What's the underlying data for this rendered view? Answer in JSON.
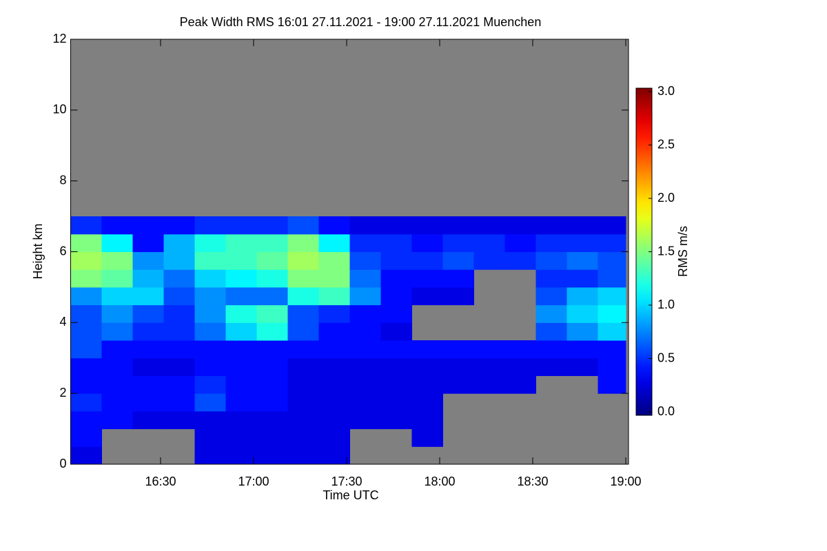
{
  "chart_data": {
    "type": "heatmap",
    "title": "Peak Width RMS   16:01 27.11.2021 - 19:00 27.11.2021 Muenchen",
    "xlabel": "Time UTC",
    "ylabel": "Height km",
    "colorbar_label": "RMS m/s",
    "colormap": "jet",
    "background": "#808080",
    "xlim": [
      961,
      1140
    ],
    "xticks": [
      {
        "value": 990,
        "label": "16:30"
      },
      {
        "value": 1020,
        "label": "17:00"
      },
      {
        "value": 1050,
        "label": "17:30"
      },
      {
        "value": 1080,
        "label": "18:00"
      },
      {
        "value": 1110,
        "label": "18:30"
      },
      {
        "value": 1140,
        "label": "19:00"
      }
    ],
    "ylim": [
      0,
      12
    ],
    "yticks": [
      0,
      2,
      4,
      6,
      8,
      10,
      12
    ],
    "clim": [
      0,
      3
    ],
    "cticks": [
      {
        "value": 0,
        "label": "0.0"
      },
      {
        "value": 0.5,
        "label": "0.5"
      },
      {
        "value": 1,
        "label": "1.0"
      },
      {
        "value": 1.5,
        "label": "1.5"
      },
      {
        "value": 2,
        "label": "2.0"
      },
      {
        "value": 2.5,
        "label": "2.5"
      },
      {
        "value": 3,
        "label": "3.0"
      }
    ],
    "x": [
      961,
      971,
      981,
      991,
      1001,
      1011,
      1021,
      1031,
      1041,
      1051,
      1061,
      1071,
      1081,
      1091,
      1101,
      1111,
      1121,
      1131
    ],
    "y": [
      0,
      0.5,
      1,
      1.5,
      2,
      2.5,
      3,
      3.5,
      4,
      4.5,
      5,
      5.5,
      6,
      6.5
    ],
    "z": [
      [
        0.3,
        null,
        null,
        null,
        0.3,
        0.3,
        0.3,
        0.3,
        0.3,
        null,
        null,
        null,
        null,
        null,
        null,
        null,
        null,
        null
      ],
      [
        0.4,
        null,
        null,
        null,
        0.3,
        0.3,
        0.3,
        0.3,
        0.3,
        null,
        null,
        0.3,
        null,
        null,
        null,
        null,
        null,
        null
      ],
      [
        0.4,
        0.4,
        0.3,
        0.3,
        0.3,
        0.3,
        0.3,
        0.3,
        0.3,
        0.3,
        0.3,
        0.3,
        null,
        null,
        null,
        null,
        null,
        null
      ],
      [
        0.5,
        0.4,
        0.4,
        0.4,
        0.6,
        0.4,
        0.4,
        0.3,
        0.3,
        0.3,
        0.3,
        0.3,
        null,
        null,
        null,
        null,
        null,
        null
      ],
      [
        0.4,
        0.4,
        0.4,
        0.4,
        0.5,
        0.4,
        0.4,
        0.3,
        0.3,
        0.3,
        0.3,
        0.3,
        0.3,
        0.3,
        0.3,
        null,
        null,
        0.4
      ],
      [
        0.4,
        0.4,
        0.3,
        0.3,
        0.4,
        0.4,
        0.4,
        0.3,
        0.3,
        0.3,
        0.3,
        0.3,
        0.3,
        0.3,
        0.3,
        0.3,
        0.3,
        0.4
      ],
      [
        0.6,
        0.4,
        0.4,
        0.4,
        0.4,
        0.4,
        0.4,
        0.4,
        0.4,
        0.4,
        0.4,
        0.4,
        0.4,
        0.4,
        0.4,
        0.4,
        0.4,
        0.4
      ],
      [
        0.6,
        0.7,
        0.5,
        0.5,
        0.7,
        1.0,
        1.2,
        0.6,
        0.4,
        0.4,
        0.3,
        null,
        null,
        null,
        null,
        0.6,
        0.8,
        1.0
      ],
      [
        0.6,
        0.8,
        0.6,
        0.5,
        0.8,
        1.2,
        1.3,
        0.6,
        0.5,
        0.4,
        0.4,
        null,
        null,
        null,
        null,
        0.8,
        1.0,
        1.1
      ],
      [
        0.8,
        1.0,
        1.0,
        0.6,
        0.8,
        0.7,
        0.7,
        1.2,
        1.3,
        0.8,
        0.4,
        0.3,
        0.3,
        null,
        null,
        0.6,
        0.9,
        1.0
      ],
      [
        1.5,
        1.4,
        0.9,
        0.7,
        1.0,
        1.1,
        1.2,
        1.5,
        1.5,
        0.7,
        0.4,
        0.4,
        0.4,
        null,
        null,
        0.5,
        0.5,
        0.6
      ],
      [
        1.6,
        1.5,
        0.8,
        0.9,
        1.3,
        1.3,
        1.4,
        1.6,
        1.5,
        0.6,
        0.5,
        0.5,
        0.6,
        0.5,
        0.5,
        0.6,
        0.7,
        0.6
      ],
      [
        1.5,
        1.1,
        0.4,
        0.9,
        1.2,
        1.3,
        1.3,
        1.5,
        1.1,
        0.5,
        0.5,
        0.4,
        0.5,
        0.5,
        0.4,
        0.5,
        0.5,
        0.5
      ],
      [
        0.5,
        0.4,
        0.4,
        0.4,
        0.5,
        0.5,
        0.5,
        0.6,
        0.4,
        0.3,
        0.3,
        0.3,
        0.3,
        0.3,
        0.3,
        0.3,
        0.3,
        0.3
      ]
    ]
  }
}
